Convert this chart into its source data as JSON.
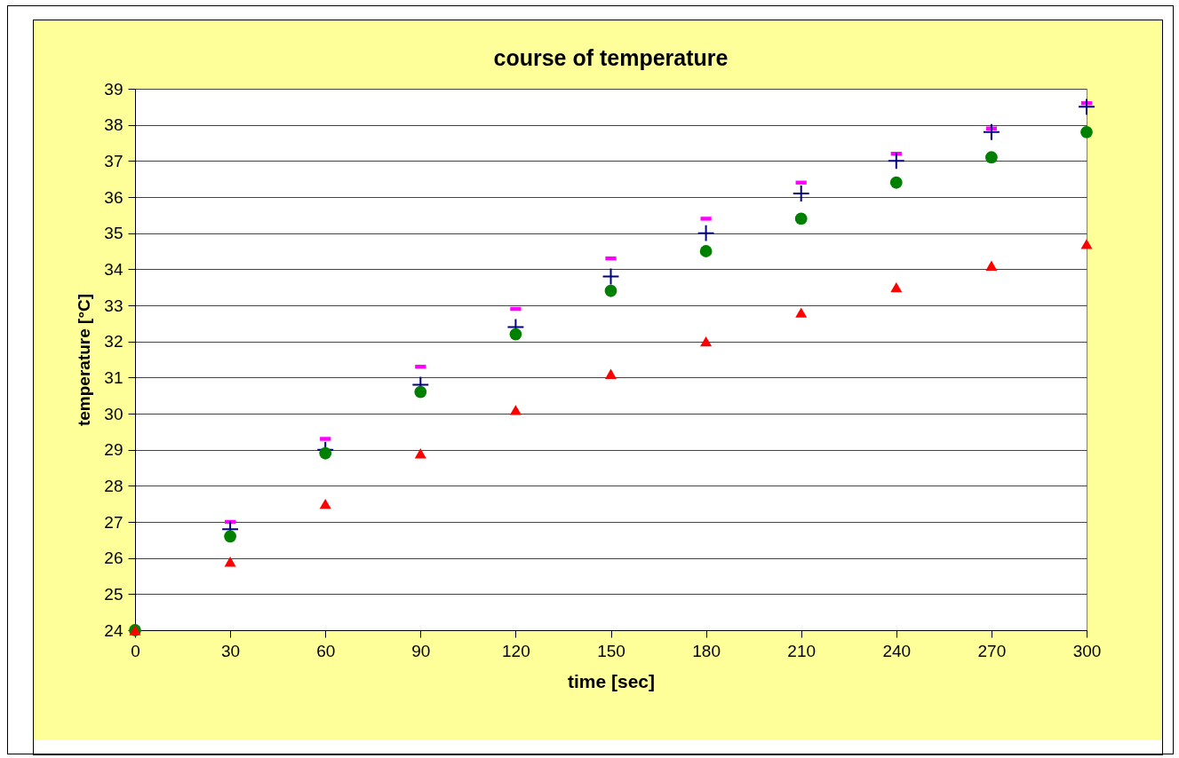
{
  "chart_data": {
    "type": "scatter",
    "title": "course of temperature",
    "xlabel": "time [sec]",
    "ylabel": "temperature [°C]",
    "x": [
      0,
      30,
      60,
      90,
      120,
      150,
      180,
      210,
      240,
      270,
      300
    ],
    "series": [
      {
        "color": "#ff00ff",
        "values": [
          null,
          27.0,
          29.3,
          31.3,
          32.9,
          34.3,
          35.4,
          36.4,
          37.2,
          37.9,
          38.6
        ]
      },
      {
        "color": "#000080",
        "marker": "cross",
        "values": [
          null,
          26.8,
          29.0,
          30.8,
          32.4,
          33.8,
          35.0,
          36.1,
          37.0,
          37.8,
          38.5
        ]
      },
      {
        "color": "#008000",
        "marker": "circle",
        "values": [
          24.0,
          26.6,
          28.9,
          30.6,
          32.2,
          33.4,
          34.5,
          35.4,
          36.4,
          37.1,
          37.8
        ]
      },
      {
        "color": "#ff0000",
        "marker": "triangle",
        "values": [
          24.0,
          25.9,
          27.5,
          28.9,
          30.1,
          31.1,
          32.0,
          32.8,
          33.5,
          34.1,
          34.7
        ]
      }
    ],
    "xlim": [
      0,
      300
    ],
    "xticks": [
      0,
      30,
      60,
      90,
      120,
      150,
      180,
      210,
      240,
      270,
      300
    ],
    "ylim": [
      24,
      39
    ],
    "yticks": [
      24,
      25,
      26,
      27,
      28,
      29,
      30,
      31,
      32,
      33,
      34,
      35,
      36,
      37,
      38,
      39
    ],
    "grid": "y"
  }
}
